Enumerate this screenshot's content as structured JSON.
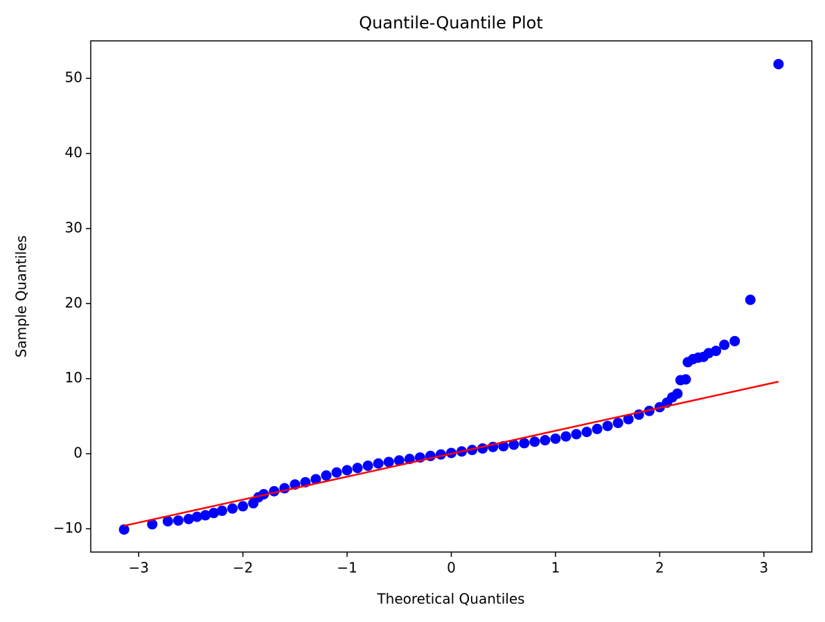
{
  "chart_data": {
    "type": "scatter",
    "title": "Quantile-Quantile Plot",
    "x_label": "Theoretical Quantiles",
    "y_label": "Sample Quantiles",
    "xlim": [
      -3.46,
      3.46
    ],
    "ylim": [
      -13.1,
      55
    ],
    "xticks": [
      {
        "value": -3,
        "label": "−3"
      },
      {
        "value": -2,
        "label": "−2"
      },
      {
        "value": -1,
        "label": "−1"
      },
      0,
      1,
      2,
      3
    ],
    "yticks": [
      {
        "value": -10,
        "label": "−10"
      },
      0,
      10,
      20,
      30,
      40,
      50
    ],
    "series": [
      {
        "kind": "scatter",
        "color": "#0000ff",
        "x": [
          -3.14,
          -2.87,
          -2.72,
          -2.62,
          -2.52,
          -2.44,
          -2.36,
          -2.28,
          -2.2,
          -2.1,
          -2.0,
          -1.9,
          -1.85,
          -1.8,
          -1.7,
          -1.6,
          -1.5,
          -1.4,
          -1.3,
          -1.2,
          -1.1,
          -1.0,
          -0.9,
          -0.8,
          -0.7,
          -0.6,
          -0.5,
          -0.4,
          -0.3,
          -0.2,
          -0.1,
          0,
          0.1,
          0.2,
          0.3,
          0.4,
          0.5,
          0.6,
          0.7,
          0.8,
          0.9,
          1.0,
          1.1,
          1.2,
          1.3,
          1.4,
          1.5,
          1.6,
          1.7,
          1.8,
          1.9,
          2.0,
          2.07,
          2.12,
          2.17,
          2.2,
          2.25,
          2.27,
          2.32,
          2.37,
          2.42,
          2.47,
          2.54,
          2.62,
          2.72,
          2.87,
          3.14
        ],
        "values": [
          -10.1,
          -9.4,
          -9.0,
          -8.9,
          -8.7,
          -8.4,
          -8.2,
          -7.9,
          -7.6,
          -7.3,
          -7.0,
          -6.6,
          -5.8,
          -5.4,
          -5.0,
          -4.6,
          -4.1,
          -3.8,
          -3.4,
          -2.9,
          -2.5,
          -2.2,
          -1.9,
          -1.6,
          -1.3,
          -1.1,
          -0.9,
          -0.7,
          -0.5,
          -0.3,
          -0.1,
          0.1,
          0.3,
          0.5,
          0.7,
          0.9,
          1.0,
          1.2,
          1.4,
          1.6,
          1.8,
          2.0,
          2.3,
          2.6,
          2.9,
          3.3,
          3.7,
          4.1,
          4.6,
          5.2,
          5.7,
          6.2,
          6.8,
          7.5,
          8.0,
          9.8,
          9.9,
          12.2,
          12.6,
          12.8,
          12.9,
          13.4,
          13.7,
          14.5,
          15.0,
          20.5,
          51.9
        ]
      },
      {
        "kind": "line",
        "color": "#ff0000",
        "x": [
          -3.14,
          3.14
        ],
        "values": [
          -9.6,
          9.6
        ]
      }
    ]
  }
}
